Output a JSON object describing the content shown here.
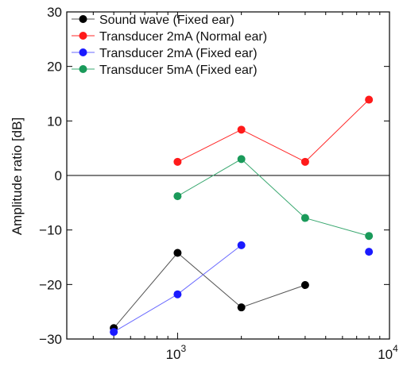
{
  "chart_data": {
    "type": "line",
    "xscale": "log",
    "xlim": [
      300,
      10000
    ],
    "ylim": [
      -30,
      30
    ],
    "ylabel": "Amplitude ratio [dB]",
    "xlabel": "",
    "x_ticks": [
      {
        "value": 1000,
        "base": "10",
        "exp": "3"
      },
      {
        "value": 10000,
        "base": "10",
        "exp": "4"
      }
    ],
    "y_ticks": [
      -30,
      -20,
      -10,
      0,
      10,
      20,
      30
    ],
    "zero_line": true,
    "grid": false,
    "legend_position": "top-left",
    "series": [
      {
        "name": "Sound wave (Fixed ear)",
        "color": "#000000",
        "line_color": "#555555",
        "x": [
          500,
          1000,
          2000,
          4000
        ],
        "y": [
          -28,
          -14.2,
          -24.2,
          -20.1
        ],
        "connect_through": 3
      },
      {
        "name": "Transducer 2mA (Normal ear)",
        "color": "#ff1a1a",
        "line_color": "#ff2a2a",
        "x": [
          1000,
          2000,
          4000,
          8000
        ],
        "y": [
          2.5,
          8.4,
          2.5,
          13.9
        ],
        "connect_through": 3
      },
      {
        "name": "Transducer 2mA (Fixed ear)",
        "color": "#1a1aff",
        "line_color": "#6a6aff",
        "x": [
          500,
          1000,
          2000,
          8000
        ],
        "y": [
          -28.7,
          -21.8,
          -12.8,
          -14
        ],
        "connect_through": 2
      },
      {
        "name": "Transducer 5mA (Fixed ear)",
        "color": "#1a9a5a",
        "line_color": "#3aa870",
        "x": [
          1000,
          2000,
          4000,
          8000
        ],
        "y": [
          -3.8,
          3,
          -7.8,
          -11.1
        ],
        "connect_through": 3
      }
    ]
  }
}
